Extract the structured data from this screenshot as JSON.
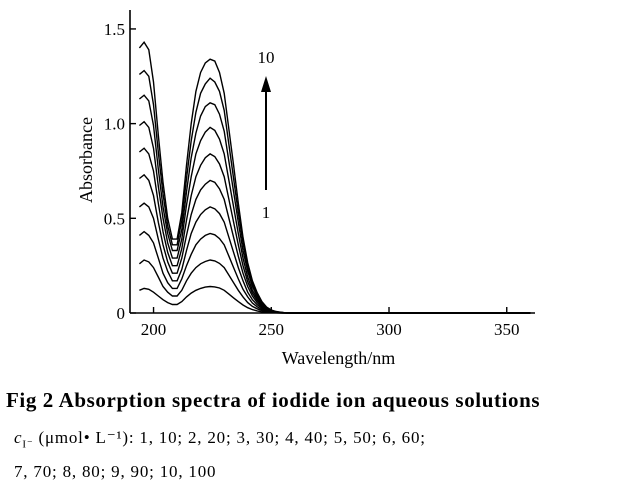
{
  "chart_data": {
    "type": "line",
    "title": "",
    "xlabel": "Wavelength/nm",
    "ylabel": "Absorbance",
    "xlim": [
      190,
      362
    ],
    "ylim": [
      0,
      1.6
    ],
    "x_ticks": [
      200,
      250,
      300,
      350
    ],
    "x_tick_labels": [
      "200",
      "250",
      "300",
      "350"
    ],
    "y_ticks": [
      0,
      0.5,
      1.0,
      1.5
    ],
    "y_tick_labels": [
      "0",
      "0.5",
      "1.0",
      "1.5"
    ],
    "x": [
      194,
      196,
      198,
      200,
      202,
      204,
      206,
      208,
      210,
      212,
      214,
      216,
      218,
      220,
      222,
      224,
      226,
      228,
      230,
      232,
      234,
      236,
      238,
      240,
      242,
      244,
      246,
      248,
      250,
      252,
      254,
      256,
      260,
      270,
      280,
      300,
      320,
      340,
      360
    ],
    "series": [
      {
        "name": "1",
        "values": [
          0.12,
          0.13,
          0.125,
          0.11,
          0.09,
          0.07,
          0.055,
          0.045,
          0.045,
          0.06,
          0.085,
          0.105,
          0.12,
          0.13,
          0.137,
          0.14,
          0.138,
          0.132,
          0.12,
          0.1,
          0.08,
          0.06,
          0.042,
          0.028,
          0.018,
          0.011,
          0.006,
          0.003,
          0.002,
          0.001,
          0,
          0,
          0,
          0,
          0,
          0,
          0,
          0,
          0
        ]
      },
      {
        "name": "2",
        "values": [
          0.26,
          0.28,
          0.27,
          0.24,
          0.19,
          0.14,
          0.11,
          0.09,
          0.09,
          0.12,
          0.17,
          0.21,
          0.24,
          0.26,
          0.272,
          0.28,
          0.275,
          0.262,
          0.24,
          0.2,
          0.16,
          0.12,
          0.085,
          0.055,
          0.035,
          0.022,
          0.012,
          0.007,
          0.004,
          0.002,
          0.001,
          0,
          0,
          0,
          0,
          0,
          0,
          0,
          0
        ]
      },
      {
        "name": "3",
        "values": [
          0.41,
          0.43,
          0.41,
          0.37,
          0.29,
          0.21,
          0.16,
          0.13,
          0.13,
          0.18,
          0.25,
          0.31,
          0.36,
          0.39,
          0.41,
          0.42,
          0.413,
          0.393,
          0.36,
          0.3,
          0.24,
          0.18,
          0.125,
          0.085,
          0.053,
          0.033,
          0.018,
          0.01,
          0.005,
          0.003,
          0.001,
          0,
          0,
          0,
          0,
          0,
          0,
          0,
          0
        ]
      },
      {
        "name": "4",
        "values": [
          0.56,
          0.58,
          0.56,
          0.5,
          0.39,
          0.29,
          0.22,
          0.17,
          0.17,
          0.23,
          0.33,
          0.42,
          0.48,
          0.52,
          0.545,
          0.56,
          0.55,
          0.525,
          0.48,
          0.4,
          0.32,
          0.24,
          0.17,
          0.11,
          0.07,
          0.044,
          0.025,
          0.013,
          0.007,
          0.004,
          0.002,
          0.001,
          0,
          0,
          0,
          0,
          0,
          0,
          0
        ]
      },
      {
        "name": "5",
        "values": [
          0.71,
          0.73,
          0.7,
          0.62,
          0.48,
          0.36,
          0.27,
          0.21,
          0.21,
          0.29,
          0.41,
          0.52,
          0.6,
          0.65,
          0.68,
          0.7,
          0.69,
          0.656,
          0.6,
          0.5,
          0.4,
          0.3,
          0.21,
          0.14,
          0.09,
          0.055,
          0.031,
          0.016,
          0.008,
          0.004,
          0.002,
          0.001,
          0,
          0,
          0,
          0,
          0,
          0,
          0
        ]
      },
      {
        "name": "6",
        "values": [
          0.85,
          0.87,
          0.84,
          0.75,
          0.58,
          0.43,
          0.32,
          0.25,
          0.25,
          0.34,
          0.49,
          0.62,
          0.72,
          0.78,
          0.82,
          0.84,
          0.826,
          0.787,
          0.72,
          0.6,
          0.48,
          0.36,
          0.25,
          0.165,
          0.105,
          0.066,
          0.037,
          0.019,
          0.01,
          0.005,
          0.002,
          0.001,
          0,
          0,
          0,
          0,
          0,
          0,
          0
        ]
      },
      {
        "name": "7",
        "values": [
          0.99,
          1.01,
          0.98,
          0.87,
          0.67,
          0.5,
          0.37,
          0.29,
          0.29,
          0.39,
          0.57,
          0.72,
          0.84,
          0.91,
          0.955,
          0.98,
          0.964,
          0.918,
          0.84,
          0.7,
          0.56,
          0.42,
          0.29,
          0.19,
          0.12,
          0.077,
          0.043,
          0.022,
          0.011,
          0.006,
          0.003,
          0.001,
          0,
          0,
          0,
          0,
          0,
          0,
          0
        ]
      },
      {
        "name": "8",
        "values": [
          1.13,
          1.15,
          1.12,
          0.99,
          0.76,
          0.56,
          0.42,
          0.33,
          0.33,
          0.44,
          0.64,
          0.82,
          0.95,
          1.04,
          1.09,
          1.11,
          1.1,
          1.05,
          0.96,
          0.8,
          0.64,
          0.48,
          0.33,
          0.22,
          0.14,
          0.088,
          0.049,
          0.025,
          0.013,
          0.006,
          0.003,
          0.001,
          0,
          0,
          0,
          0,
          0,
          0,
          0
        ]
      },
      {
        "name": "9",
        "values": [
          1.26,
          1.28,
          1.25,
          1.1,
          0.85,
          0.63,
          0.46,
          0.36,
          0.36,
          0.49,
          0.71,
          0.91,
          1.06,
          1.16,
          1.21,
          1.24,
          1.22,
          1.17,
          1.07,
          0.89,
          0.71,
          0.53,
          0.37,
          0.24,
          0.155,
          0.098,
          0.055,
          0.028,
          0.014,
          0.007,
          0.003,
          0.001,
          0,
          0,
          0,
          0,
          0,
          0,
          0
        ]
      },
      {
        "name": "10",
        "values": [
          1.4,
          1.43,
          1.39,
          1.22,
          0.94,
          0.69,
          0.5,
          0.39,
          0.39,
          0.53,
          0.78,
          1.0,
          1.17,
          1.27,
          1.32,
          1.34,
          1.33,
          1.27,
          1.16,
          0.97,
          0.78,
          0.58,
          0.4,
          0.265,
          0.17,
          0.107,
          0.06,
          0.031,
          0.016,
          0.008,
          0.004,
          0.001,
          0,
          0,
          0,
          0,
          0,
          0,
          0
        ]
      }
    ],
    "annotation_top": "10",
    "annotation_bottom": "1",
    "grid": false,
    "legend": "none"
  },
  "caption": "Fig 2    Absorption spectra of iodide ion aqueous solutions",
  "legend_line1_symbol": "c",
  "legend_line1_sub": "I⁻",
  "legend_line1_text": " (μmol• L⁻¹): 1, 10; 2, 20; 3, 30; 4, 40; 5, 50; 6, 60;",
  "legend_line2": "7, 70; 8, 80; 9, 90; 10, 100"
}
